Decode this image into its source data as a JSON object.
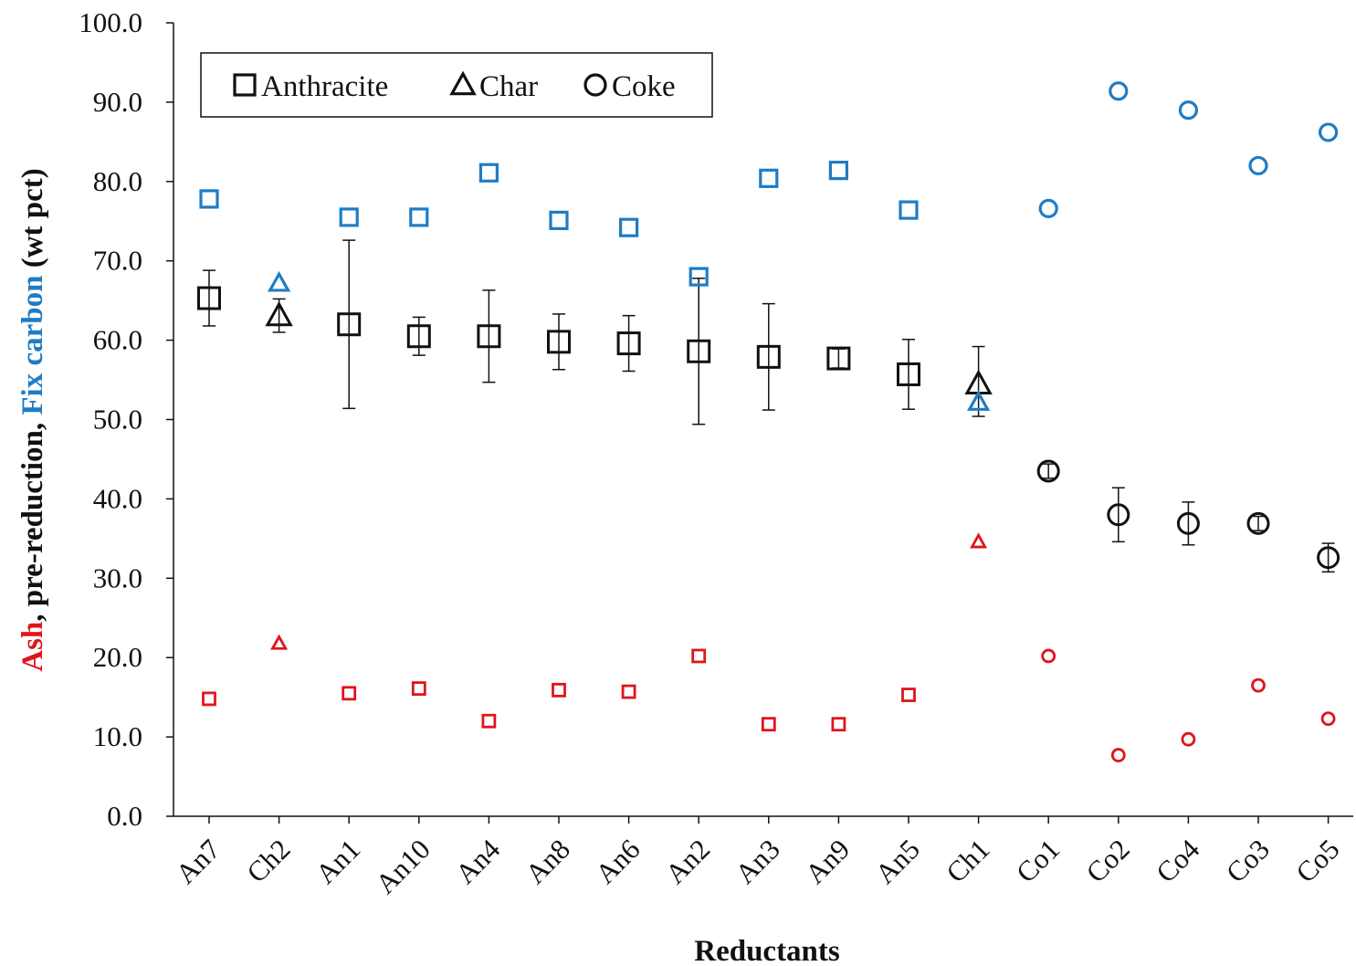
{
  "chart_data": {
    "type": "scatter",
    "xlabel": "Reductants",
    "ylabel_parts": [
      {
        "text": "Ash",
        "color": "#e0141c"
      },
      {
        "text": ", pre-reduction, ",
        "color": "#111111"
      },
      {
        "text": "Fix carbon",
        "color": "#1f7cc4"
      },
      {
        "text": " (wt pct)",
        "color": "#111111"
      }
    ],
    "ylim": [
      0,
      100
    ],
    "yticks": [
      "0.0",
      "10.0",
      "20.0",
      "30.0",
      "40.0",
      "50.0",
      "60.0",
      "70.0",
      "80.0",
      "90.0",
      "100.0"
    ],
    "categories": [
      "An7",
      "Ch2",
      "An1",
      "An10",
      "An4",
      "An8",
      "An6",
      "An2",
      "An3",
      "An9",
      "An5",
      "Ch1",
      "Co1",
      "Co2",
      "Co4",
      "Co3",
      "Co5"
    ],
    "reductant_type": [
      "square",
      "triangle",
      "square",
      "square",
      "square",
      "square",
      "square",
      "square",
      "square",
      "square",
      "square",
      "triangle",
      "circle",
      "circle",
      "circle",
      "circle",
      "circle"
    ],
    "legend": {
      "position": "top-left",
      "entries": [
        {
          "marker": "square",
          "label": "Anthracite"
        },
        {
          "marker": "triangle",
          "label": "Char"
        },
        {
          "marker": "circle",
          "label": "Coke"
        }
      ]
    },
    "series": [
      {
        "color": "#1f7cc4",
        "values": [
          77.8,
          67.2,
          75.5,
          75.5,
          81.1,
          75.1,
          74.2,
          68.0,
          80.4,
          81.4,
          76.4,
          52.2,
          76.6,
          91.4,
          89.0,
          82.0,
          86.2
        ]
      },
      {
        "color": "#111111",
        "values": [
          65.3,
          63.1,
          62.0,
          60.5,
          60.5,
          59.8,
          59.6,
          58.6,
          57.9,
          57.7,
          55.7,
          54.5,
          43.5,
          38.0,
          36.9,
          36.9,
          32.6
        ],
        "error_upper": [
          68.8,
          65.2,
          72.6,
          62.9,
          66.3,
          63.3,
          63.1,
          67.8,
          64.6,
          58.9,
          60.1,
          59.2,
          44.4,
          41.4,
          39.6,
          37.8,
          34.4
        ],
        "error_lower": [
          61.8,
          61.0,
          51.4,
          58.1,
          54.7,
          56.3,
          56.1,
          49.4,
          51.2,
          56.5,
          51.3,
          50.4,
          42.6,
          34.6,
          34.2,
          36.0,
          30.8
        ]
      },
      {
        "color": "#e0141c",
        "values": [
          14.8,
          21.8,
          15.5,
          16.1,
          12.0,
          15.9,
          15.7,
          20.2,
          11.6,
          11.6,
          15.3,
          34.6,
          20.2,
          7.7,
          9.7,
          16.5,
          12.3
        ]
      }
    ]
  }
}
